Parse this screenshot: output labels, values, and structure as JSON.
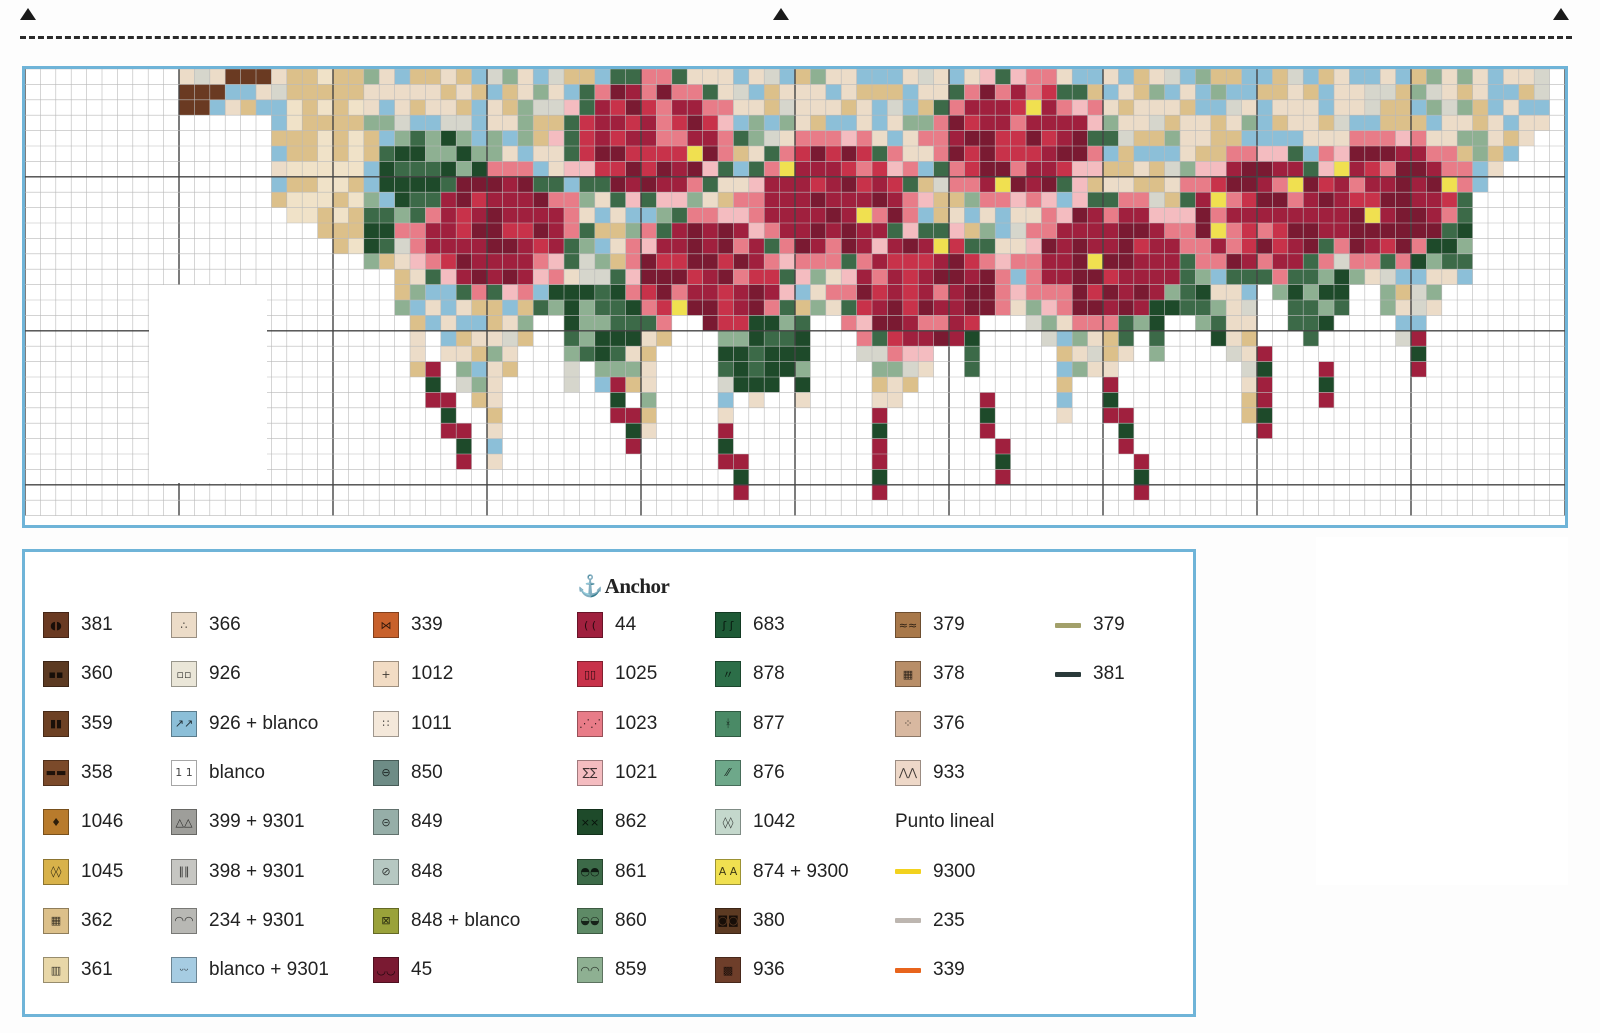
{
  "brand": {
    "icon": "anchor-icon",
    "name": "Anchor"
  },
  "legend": {
    "columns": [
      {
        "items": [
          {
            "code": "381",
            "color": "#6a3a22",
            "symbol": "◖◗"
          },
          {
            "code": "360",
            "color": "#5c3a22",
            "symbol": "▪▪"
          },
          {
            "code": "359",
            "color": "#6d4124",
            "symbol": "▮▮"
          },
          {
            "code": "358",
            "color": "#7b4a2a",
            "symbol": "▬▬"
          },
          {
            "code": "1046",
            "color": "#b87b2c",
            "symbol": "♦"
          },
          {
            "code": "1045",
            "color": "#d8b24a",
            "symbol": "◊◊"
          },
          {
            "code": "362",
            "color": "#dcc08a",
            "symbol": "▦"
          },
          {
            "code": "361",
            "color": "#e8d7a8",
            "symbol": "▥"
          }
        ]
      },
      {
        "items": [
          {
            "code": "366",
            "color": "#ecdcc8",
            "symbol": "∴"
          },
          {
            "code": "926",
            "color": "#eae6d8",
            "symbol": "▫▫"
          },
          {
            "code": "926 + blanco",
            "color": "#8cbfd8",
            "symbol": "↗↗"
          },
          {
            "code": "blanco",
            "color": "#ffffff",
            "symbol": "1 1"
          },
          {
            "code": "399 + 9301",
            "color": "#9e9e9a",
            "symbol": "△△"
          },
          {
            "code": "398 + 9301",
            "color": "#c6c6c2",
            "symbol": "∥∥"
          },
          {
            "code": "234 + 9301",
            "color": "#b8b8b4",
            "symbol": "◠◠"
          },
          {
            "code": "blanco + 9301",
            "color": "#a6cce2",
            "symbol": "ᵕᵕ"
          }
        ]
      },
      {
        "items": [
          {
            "code": "339",
            "color": "#c8612c",
            "symbol": "⋈"
          },
          {
            "code": "1012",
            "color": "#f2dcc4",
            "symbol": "+"
          },
          {
            "code": "1011",
            "color": "#f4e8da",
            "symbol": "∷"
          },
          {
            "code": "850",
            "color": "#6e8c86",
            "symbol": "⊖"
          },
          {
            "code": "849",
            "color": "#96aea8",
            "symbol": "⊝"
          },
          {
            "code": "848",
            "color": "#b6c8c2",
            "symbol": "⊘"
          },
          {
            "code": "848 + blanco",
            "color": "#9aa23a",
            "symbol": "⊠"
          },
          {
            "code": "45",
            "color": "#7a1a32",
            "symbol": "◡◡"
          }
        ]
      },
      {
        "items": [
          {
            "code": "44",
            "color": "#a0203e",
            "symbol": "( ("
          },
          {
            "code": "1025",
            "color": "#c8324a",
            "symbol": "▯▯"
          },
          {
            "code": "1023",
            "color": "#e87c88",
            "symbol": "⋰⋰"
          },
          {
            "code": "1021",
            "color": "#f4bcc0",
            "symbol": "∑∑"
          },
          {
            "code": "862",
            "color": "#1e4a2a",
            "symbol": "××"
          },
          {
            "code": "861",
            "color": "#3c6a48",
            "symbol": "◓◓"
          },
          {
            "code": "860",
            "color": "#5e8a66",
            "symbol": "◒◒"
          },
          {
            "code": "859",
            "color": "#8eb092",
            "symbol": "◠◠"
          }
        ]
      },
      {
        "items": [
          {
            "code": "683",
            "color": "#1e5a36",
            "symbol": "ʃ ʃ"
          },
          {
            "code": "878",
            "color": "#2c6e48",
            "symbol": "〃"
          },
          {
            "code": "877",
            "color": "#4a8a66",
            "symbol": "ᚼ"
          },
          {
            "code": "876",
            "color": "#6ea88a",
            "symbol": "⁄⁄"
          },
          {
            "code": "1042",
            "color": "#c4d8cc",
            "symbol": "◊◊"
          },
          {
            "code": "874 + 9300",
            "color": "#f0e050",
            "symbol": "A A"
          },
          {
            "code": "380",
            "color": "#5c3a22",
            "symbol": "◙◙"
          },
          {
            "code": "936",
            "color": "#6e3e2a",
            "symbol": "▩"
          }
        ]
      },
      {
        "items": [
          {
            "code": "379",
            "color": "#a8784a",
            "symbol": "≈≈"
          },
          {
            "code": "378",
            "color": "#b88e68",
            "symbol": "▦"
          },
          {
            "code": "376",
            "color": "#d8b8a0",
            "symbol": "⁘"
          },
          {
            "code": "933",
            "color": "#eed8c8",
            "symbol": "⋀⋀"
          }
        ],
        "heading": "Punto lineal",
        "lines": [
          {
            "code": "9300",
            "color": "#f2d21e"
          },
          {
            "code": "235",
            "color": "#bdb6b0"
          },
          {
            "code": "339",
            "color": "#e8641c"
          }
        ]
      },
      {
        "lines": [
          {
            "code": "379",
            "color": "#a2a06a"
          },
          {
            "code": "381",
            "color": "#2a3a3a"
          }
        ]
      }
    ]
  },
  "chart_palette": {
    "bg": "#ffffff",
    "gridline": "#b9b9b9",
    "majorline": "#444444",
    "rose_dark": "#7a1a32",
    "rose_mid": "#a0203e",
    "rose_bright": "#c8324a",
    "rose_pink": "#e87c88",
    "rose_light": "#f4bcc0",
    "leaf_dark": "#1e4a2a",
    "leaf_mid": "#3c6a48",
    "leaf_light": "#8eb092",
    "cream": "#ecdcc8",
    "beige": "#dcc08a",
    "sky": "#8cbfd8",
    "gold": "#f0e050",
    "brown": "#6a3a22"
  }
}
